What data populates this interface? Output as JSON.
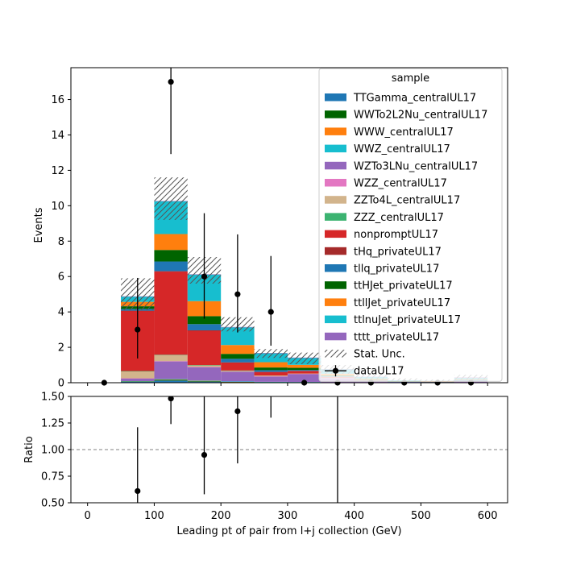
{
  "chart_data": {
    "type": "bar",
    "stacked": true,
    "xlabel": "Leading pt of pair from l+j collection (GeV)",
    "ylabel": "Events",
    "ratio_ylabel": "Ratio",
    "xlim": [
      -25,
      630
    ],
    "ylim": [
      0,
      17.8
    ],
    "ratio_ylim": [
      0.5,
      1.5
    ],
    "xticks": [
      "0",
      "100",
      "200",
      "300",
      "400",
      "500",
      "600"
    ],
    "xtick_values": [
      0,
      100,
      200,
      300,
      400,
      500,
      600
    ],
    "yticks": [
      "0",
      "2",
      "4",
      "6",
      "8",
      "10",
      "12",
      "14",
      "16"
    ],
    "ytick_values": [
      0,
      2,
      4,
      6,
      8,
      10,
      12,
      14,
      16
    ],
    "ratio_yticks": [
      "0.50",
      "0.75",
      "1.00",
      "1.25",
      "1.50"
    ],
    "ratio_ytick_values": [
      0.5,
      0.75,
      1.0,
      1.25,
      1.5
    ],
    "bin_edges": [
      0,
      50,
      100,
      150,
      200,
      250,
      300,
      350,
      400,
      450,
      500,
      550,
      600
    ],
    "legend_title": "sample",
    "legend_position": "upper-right",
    "series": [
      {
        "name": "TTGamma_centralUL17",
        "color": "#1f77b4",
        "values": [
          0,
          0.05,
          0.12,
          0.06,
          0.03,
          0.02,
          0.01,
          0.01,
          0,
          0,
          0,
          0
        ]
      },
      {
        "name": "WWTo2L2Nu_centralUL17",
        "color": "#006400",
        "values": [
          0,
          0.02,
          0.05,
          0.03,
          0.02,
          0.01,
          0.01,
          0,
          0,
          0,
          0,
          0
        ]
      },
      {
        "name": "WWW_centralUL17",
        "color": "#ff7f0e",
        "values": [
          0,
          0.01,
          0.02,
          0.02,
          0.01,
          0.01,
          0.01,
          0,
          0,
          0,
          0,
          0
        ]
      },
      {
        "name": "WWZ_centralUL17",
        "color": "#17becf",
        "values": [
          0,
          0.01,
          0.02,
          0.02,
          0.01,
          0.01,
          0.01,
          0,
          0,
          0,
          0,
          0
        ]
      },
      {
        "name": "WZTo3LNu_centralUL17",
        "color": "#9467bd",
        "values": [
          0,
          0.15,
          1.0,
          0.75,
          0.55,
          0.3,
          0.45,
          0.25,
          0.1,
          0.05,
          0.05,
          0.1
        ]
      },
      {
        "name": "WZZ_centralUL17",
        "color": "#e377c2",
        "values": [
          0,
          0.01,
          0.01,
          0.01,
          0.01,
          0.01,
          0.01,
          0,
          0,
          0,
          0,
          0
        ]
      },
      {
        "name": "ZZTo4L_centralUL17",
        "color": "#d2b48c",
        "values": [
          0,
          0.4,
          0.35,
          0.1,
          0.05,
          0.05,
          0.02,
          0.02,
          0.01,
          0,
          0,
          0
        ]
      },
      {
        "name": "ZZZ_centralUL17",
        "color": "#3cb371",
        "values": [
          0,
          0.01,
          0.01,
          0.01,
          0.01,
          0,
          0,
          0,
          0,
          0,
          0,
          0
        ]
      },
      {
        "name": "nonpromptUL17",
        "color": "#d62728",
        "values": [
          0,
          3.4,
          4.7,
          1.95,
          0.45,
          0.2,
          0.15,
          0.05,
          0.02,
          0,
          0,
          0
        ]
      },
      {
        "name": "tHq_privateUL17",
        "color": "#a52a2a",
        "values": [
          0,
          0.01,
          0.02,
          0.01,
          0.01,
          0,
          0,
          0,
          0,
          0,
          0,
          0
        ]
      },
      {
        "name": "tllq_privateUL17",
        "color": "#1f77b4",
        "values": [
          0,
          0.1,
          0.55,
          0.35,
          0.2,
          0.1,
          0.05,
          0.03,
          0.02,
          0.01,
          0,
          0.05
        ]
      },
      {
        "name": "ttHJet_privateUL17",
        "color": "#006400",
        "values": [
          0,
          0.15,
          0.65,
          0.45,
          0.28,
          0.15,
          0.12,
          0.05,
          0.03,
          0.01,
          0.01,
          0.02
        ]
      },
      {
        "name": "ttllJet_privateUL17",
        "color": "#ff7f0e",
        "values": [
          0,
          0.25,
          0.9,
          0.85,
          0.5,
          0.3,
          0.17,
          0.1,
          0.05,
          0.02,
          0.01,
          0.03
        ]
      },
      {
        "name": "ttlnuJet_privateUL17",
        "color": "#17becf",
        "values": [
          0,
          0.3,
          1.85,
          1.5,
          1.0,
          0.5,
          0.4,
          0.25,
          0.1,
          0.05,
          0.03,
          0.07
        ]
      },
      {
        "name": "tttt_privateUL17",
        "color": "#9467bd",
        "values": [
          0,
          0.01,
          0.02,
          0.02,
          0.02,
          0.02,
          0.01,
          0.01,
          0.01,
          0,
          0,
          0.03
        ]
      }
    ],
    "stat_unc": {
      "name": "Stat. Unc.",
      "low": [
        0,
        4.1,
        9.2,
        5.6,
        2.9,
        1.4,
        1.05,
        0.5,
        0.2,
        0.07,
        0.05,
        0.18
      ],
      "high": [
        0,
        5.9,
        11.6,
        7.1,
        3.7,
        1.9,
        1.7,
        1.0,
        0.5,
        0.25,
        0.18,
        0.45
      ]
    },
    "data": {
      "name": "dataUL17",
      "x": [
        25,
        75,
        125,
        175,
        225,
        275,
        325,
        375,
        425,
        475,
        525,
        575
      ],
      "y": [
        0,
        3,
        17,
        6,
        5,
        4,
        0,
        0,
        0,
        0,
        0,
        0
      ],
      "yerr_low": [
        0,
        1.63,
        4.08,
        2.38,
        2.16,
        1.91,
        0,
        0,
        0,
        0,
        0,
        0
      ],
      "yerr_high": [
        0,
        2.92,
        4.18,
        3.58,
        3.38,
        3.16,
        0,
        0,
        0,
        0,
        0,
        0
      ]
    },
    "ratio": {
      "x": [
        75,
        125,
        175,
        225,
        275,
        375
      ],
      "y": [
        0.61,
        1.48,
        0.95,
        1.36,
        2.1,
        0
      ],
      "yerr_low": [
        0.33,
        0.24,
        0.37,
        0.49,
        0.8,
        0
      ],
      "yerr_high": [
        0.6,
        0.4,
        0.55,
        0.9,
        1.2,
        10
      ]
    }
  }
}
